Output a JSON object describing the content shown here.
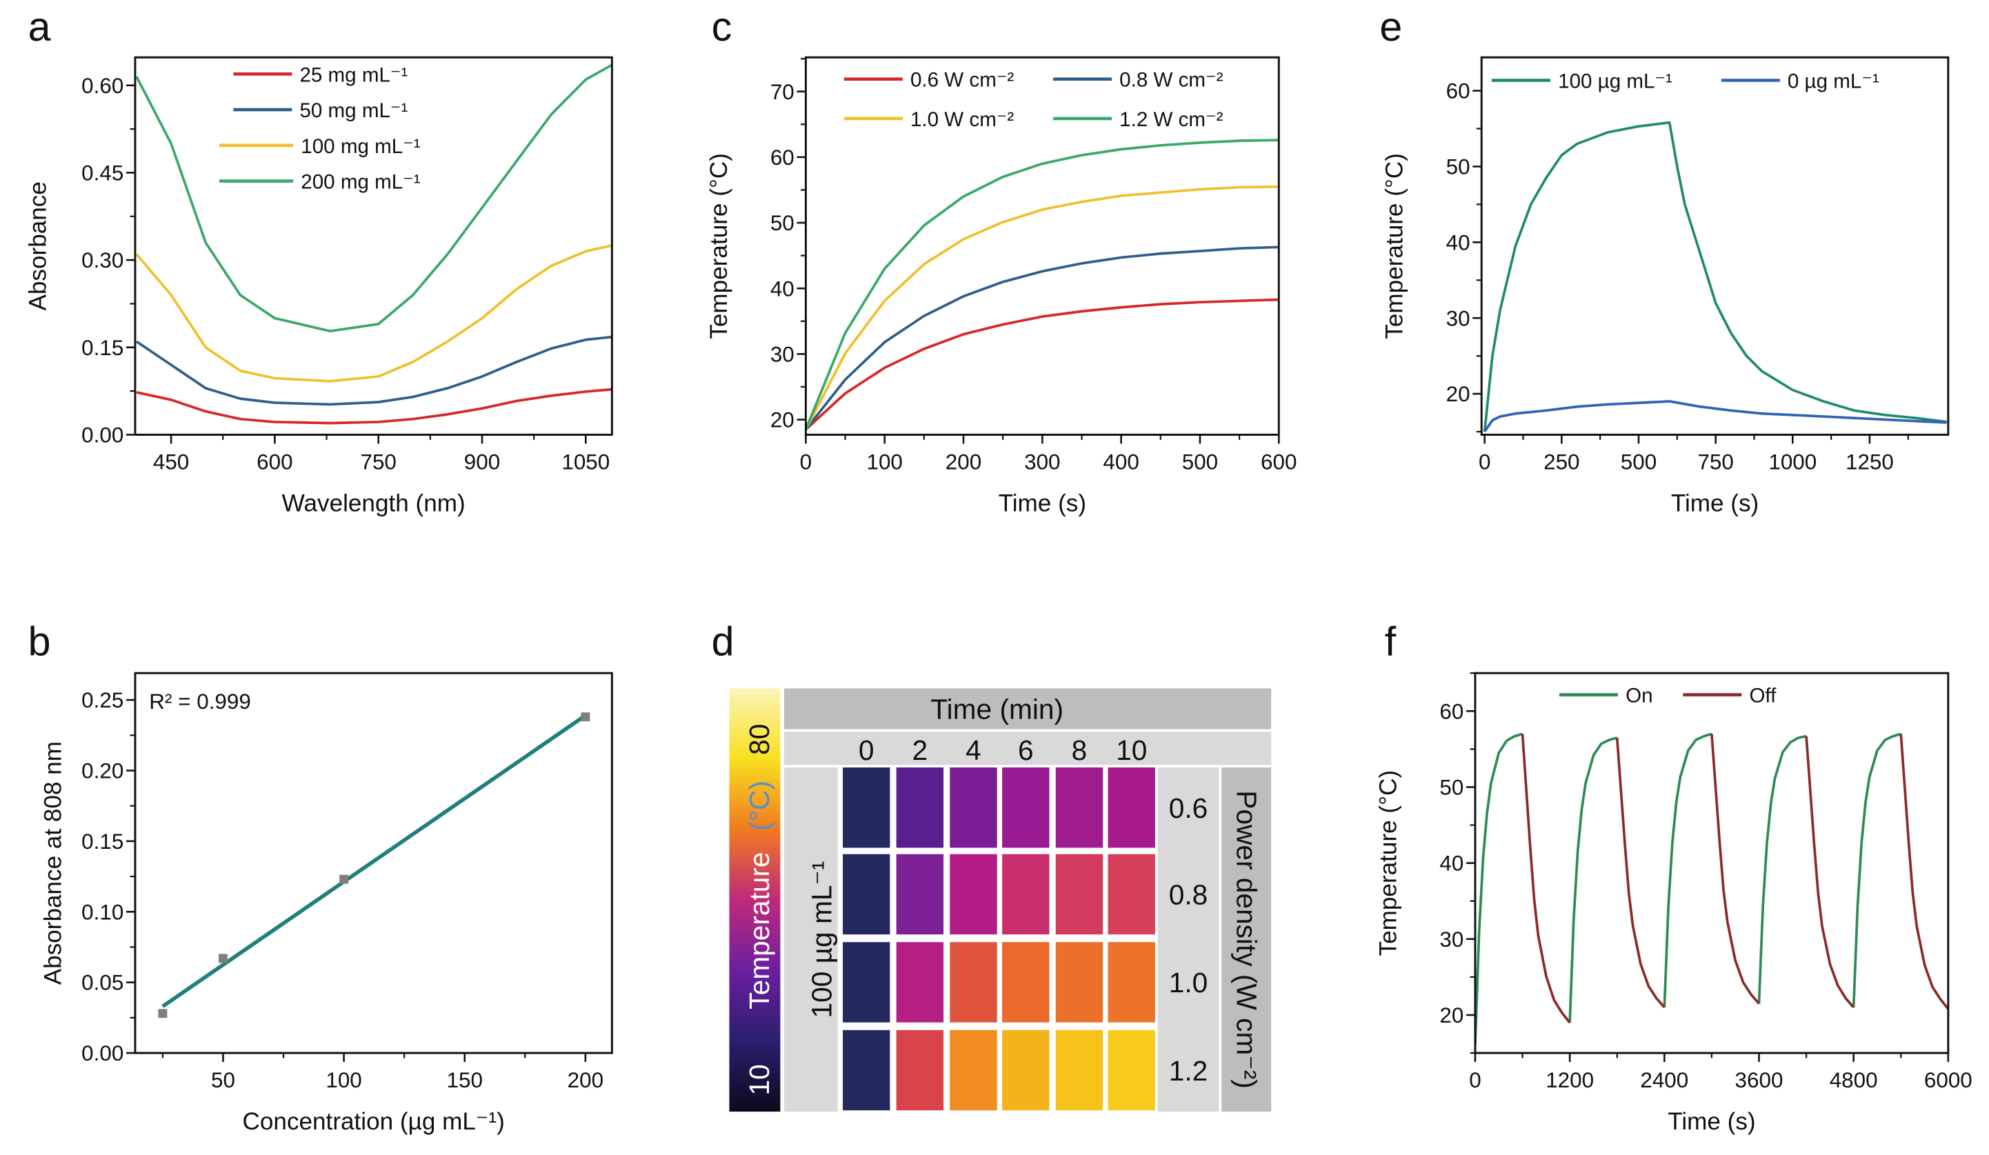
{
  "panels": [
    "a",
    "b",
    "c",
    "d",
    "e",
    "f"
  ],
  "chart_data": [
    {
      "panel": "a",
      "type": "line",
      "xlabel": "Wavelength (nm)",
      "ylabel": "Absorbance",
      "xlim": [
        398,
        1088
      ],
      "ylim": [
        0,
        0.648
      ],
      "xticks": [
        "450",
        "600",
        "750",
        "900",
        "1050"
      ],
      "yticks": [
        "0.00",
        "0.15",
        "0.30",
        "0.45",
        "0.60"
      ],
      "legend": "top-center",
      "series": [
        {
          "name": "25 mg mL⁻¹",
          "color": "#d62728",
          "x": [
            400,
            450,
            500,
            550,
            600,
            680,
            750,
            800,
            850,
            900,
            950,
            1000,
            1050,
            1088
          ],
          "y": [
            0.073,
            0.06,
            0.04,
            0.027,
            0.022,
            0.02,
            0.022,
            0.027,
            0.035,
            0.045,
            0.058,
            0.067,
            0.074,
            0.078
          ]
        },
        {
          "name": "50 mg mL⁻¹",
          "color": "#2f5d8c",
          "x": [
            400,
            450,
            500,
            550,
            600,
            680,
            750,
            800,
            850,
            900,
            950,
            1000,
            1050,
            1088
          ],
          "y": [
            0.16,
            0.12,
            0.08,
            0.062,
            0.055,
            0.052,
            0.056,
            0.065,
            0.08,
            0.1,
            0.125,
            0.148,
            0.163,
            0.168
          ]
        },
        {
          "name": "100 mg mL⁻¹",
          "color": "#f2bf2a",
          "x": [
            400,
            450,
            500,
            550,
            600,
            680,
            750,
            800,
            850,
            900,
            950,
            1000,
            1050,
            1088
          ],
          "y": [
            0.31,
            0.24,
            0.15,
            0.11,
            0.097,
            0.092,
            0.1,
            0.125,
            0.16,
            0.2,
            0.25,
            0.29,
            0.315,
            0.325
          ]
        },
        {
          "name": "200 mg mL⁻¹",
          "color": "#3aa86a",
          "x": [
            400,
            450,
            500,
            550,
            600,
            680,
            750,
            800,
            850,
            900,
            950,
            1000,
            1050,
            1088
          ],
          "y": [
            0.615,
            0.5,
            0.33,
            0.24,
            0.2,
            0.178,
            0.19,
            0.24,
            0.31,
            0.39,
            0.47,
            0.55,
            0.61,
            0.635
          ]
        }
      ]
    },
    {
      "panel": "b",
      "type": "scatter",
      "xlabel": "Concentration (µg mL⁻¹)",
      "ylabel": "Absorbance at 808 nm",
      "xlim": [
        13.6,
        211
      ],
      "ylim": [
        0,
        0.269
      ],
      "xticks": [
        "50",
        "100",
        "150",
        "200"
      ],
      "yticks": [
        "0.00",
        "0.05",
        "0.10",
        "0.15",
        "0.20",
        "0.25"
      ],
      "annotation": "R² = 0.999",
      "points": {
        "color": "#7f7f7f",
        "x": [
          25,
          50,
          100,
          200
        ],
        "y": [
          0.028,
          0.067,
          0.123,
          0.238
        ]
      },
      "fit": {
        "color": "#1f7f7a",
        "x": [
          25,
          200
        ],
        "y": [
          0.033,
          0.239
        ]
      }
    },
    {
      "panel": "c",
      "type": "line",
      "xlabel": "Time (s)",
      "ylabel": "Temperature (°C)",
      "xlim": [
        0,
        600
      ],
      "ylim": [
        17.7,
        75.2
      ],
      "xticks": [
        "0",
        "100",
        "200",
        "300",
        "400",
        "500",
        "600"
      ],
      "yticks": [
        "20",
        "30",
        "40",
        "50",
        "60",
        "70"
      ],
      "legend": "top",
      "series": [
        {
          "name": "0.6 W cm⁻²",
          "color": "#d62728",
          "x": [
            0,
            50,
            100,
            150,
            200,
            250,
            300,
            350,
            400,
            450,
            500,
            550,
            600
          ],
          "y": [
            18.5,
            24.0,
            27.9,
            30.8,
            33.0,
            34.5,
            35.7,
            36.5,
            37.1,
            37.6,
            37.9,
            38.1,
            38.3
          ]
        },
        {
          "name": "0.8 W cm⁻²",
          "color": "#2f5d8c",
          "x": [
            0,
            50,
            100,
            150,
            200,
            250,
            300,
            350,
            400,
            450,
            500,
            550,
            600
          ],
          "y": [
            18.5,
            26.1,
            31.8,
            35.8,
            38.8,
            41.0,
            42.6,
            43.8,
            44.7,
            45.3,
            45.7,
            46.1,
            46.3
          ]
        },
        {
          "name": "1.0 W cm⁻²",
          "color": "#f2bf2a",
          "x": [
            0,
            50,
            100,
            150,
            200,
            250,
            300,
            350,
            400,
            450,
            500,
            550,
            600
          ],
          "y": [
            18.5,
            30.1,
            38.1,
            43.7,
            47.5,
            50.1,
            52.0,
            53.2,
            54.1,
            54.6,
            55.1,
            55.4,
            55.5
          ]
        },
        {
          "name": "1.2 W cm⁻²",
          "color": "#3aa86a",
          "x": [
            0,
            50,
            100,
            150,
            200,
            250,
            300,
            350,
            400,
            450,
            500,
            550,
            600
          ],
          "y": [
            18.5,
            33.2,
            43.0,
            49.6,
            54.0,
            57.0,
            59.0,
            60.3,
            61.2,
            61.8,
            62.2,
            62.5,
            62.6
          ]
        }
      ]
    },
    {
      "panel": "d",
      "type": "heatmap",
      "colorbar": {
        "min_label": "10",
        "max_label": "80",
        "title": "Temperature",
        "unit": "(°C)",
        "colors": [
          "#0b0a1c",
          "#2a1f6e",
          "#6a1fa0",
          "#c02a7a",
          "#f07a20",
          "#f8e020",
          "#fbf4b8"
        ]
      },
      "col_header": "Time (min)",
      "cols": [
        "0",
        "2",
        "4",
        "6",
        "8",
        "10"
      ],
      "row_header": "100 µg mL⁻¹",
      "rows": [
        "0.6",
        "0.8",
        "1.0",
        "1.2"
      ],
      "right_header": "Power density (W cm⁻²)",
      "cell_colors": [
        [
          "#252a5e",
          "#5a1e8e",
          "#7a1c96",
          "#981b94",
          "#a01a90",
          "#a81a8c"
        ],
        [
          "#252a5e",
          "#7f2196",
          "#b31c84",
          "#c82d6e",
          "#d23a5e",
          "#d6405a"
        ],
        [
          "#252a5e",
          "#b51e84",
          "#e0543e",
          "#ea6a2c",
          "#ec702a",
          "#ee722a"
        ],
        [
          "#252a5e",
          "#d9434a",
          "#f08c20",
          "#f5b21a",
          "#f7c21a",
          "#f8cb1c"
        ]
      ]
    },
    {
      "panel": "e",
      "type": "line",
      "xlabel": "Time (s)",
      "ylabel": "Temperature (°C)",
      "xlim": [
        -10,
        1505
      ],
      "ylim": [
        14.6,
        64.4
      ],
      "xticks": [
        "0",
        "250",
        "500",
        "750",
        "1000",
        "1250"
      ],
      "yticks": [
        "20",
        "30",
        "40",
        "50",
        "60"
      ],
      "legend": "top",
      "series": [
        {
          "name": "100 µg mL⁻¹",
          "color": "#1f8a70",
          "x": [
            0,
            25,
            50,
            100,
            150,
            200,
            250,
            300,
            400,
            500,
            600,
            625,
            650,
            700,
            750,
            800,
            850,
            900,
            1000,
            1100,
            1200,
            1300,
            1400,
            1500
          ],
          "y": [
            15,
            25,
            31,
            39.5,
            45,
            48.5,
            51.5,
            53,
            54.5,
            55.3,
            55.8,
            50,
            45,
            38.5,
            32,
            28,
            25,
            23,
            20.5,
            19,
            17.8,
            17.2,
            16.8,
            16.3
          ]
        },
        {
          "name": "0 µg mL⁻¹",
          "color": "#2e63b8",
          "x": [
            0,
            25,
            50,
            100,
            200,
            300,
            400,
            500,
            600,
            700,
            800,
            900,
            1000,
            1200,
            1400,
            1500
          ],
          "y": [
            15,
            16.5,
            17,
            17.4,
            17.8,
            18.3,
            18.6,
            18.8,
            19.0,
            18.3,
            17.8,
            17.4,
            17.2,
            16.8,
            16.4,
            16.2
          ]
        }
      ]
    },
    {
      "panel": "f",
      "type": "line",
      "xlabel": "Time (s)",
      "ylabel": "Temperature (°C)",
      "xlim": [
        0,
        6000
      ],
      "ylim": [
        15,
        65
      ],
      "xticks": [
        "0",
        "1200",
        "2400",
        "3600",
        "4800",
        "6000"
      ],
      "yticks": [
        "20",
        "30",
        "40",
        "50",
        "60"
      ],
      "legend": "top-center",
      "series": [
        {
          "name": "On",
          "color": "#2e8b57",
          "segments": [
            {
              "x": [
                0,
                50,
                100,
                150,
                200,
                300,
                400,
                500,
                600
              ],
              "y": [
                16,
                31.0,
                40.6,
                46.6,
                50.5,
                54.5,
                56.1,
                56.7,
                57
              ]
            },
            {
              "x": [
                1200,
                1250,
                1300,
                1350,
                1400,
                1500,
                1600,
                1700,
                1800
              ],
              "y": [
                19,
                32.7,
                41.5,
                47.0,
                50.5,
                54.2,
                55.7,
                56.2,
                56.5
              ]
            },
            {
              "x": [
                2400,
                2450,
                2500,
                2550,
                2600,
                2700,
                2800,
                2900,
                3000
              ],
              "y": [
                21,
                34.2,
                42.6,
                47.9,
                51.3,
                54.8,
                56.2,
                56.7,
                57
              ]
            },
            {
              "x": [
                3600,
                3650,
                3700,
                3750,
                3800,
                3900,
                4000,
                4100,
                4200
              ],
              "y": [
                21.5,
                34.4,
                42.6,
                47.8,
                51.1,
                54.6,
                55.9,
                56.5,
                56.7
              ]
            },
            {
              "x": [
                4800,
                4850,
                4900,
                4950,
                5000,
                5100,
                5200,
                5300,
                5400
              ],
              "y": [
                21,
                34.2,
                42.6,
                47.9,
                51.3,
                54.8,
                56.2,
                56.7,
                57
              ]
            }
          ]
        },
        {
          "name": "Off",
          "color": "#8b2a2a",
          "segments": [
            {
              "x": [
                600,
                650,
                700,
                750,
                800,
                900,
                1000,
                1100,
                1200
              ],
              "y": [
                57,
                49.4,
                41.8,
                35.0,
                30.4,
                25.1,
                22.0,
                20.3,
                19
              ]
            },
            {
              "x": [
                1800,
                1850,
                1900,
                1950,
                2000,
                2100,
                2200,
                2300,
                2400
              ],
              "y": [
                56.5,
                49.4,
                42.3,
                35.9,
                31.7,
                26.7,
                23.8,
                22.2,
                21
              ]
            },
            {
              "x": [
                3000,
                3050,
                3100,
                3150,
                3200,
                3300,
                3400,
                3500,
                3600
              ],
              "y": [
                57,
                49.9,
                42.8,
                36.4,
                32.2,
                27.2,
                24.3,
                22.7,
                21.5
              ]
            },
            {
              "x": [
                4200,
                4250,
                4300,
                4350,
                4400,
                4500,
                4600,
                4700,
                4800
              ],
              "y": [
                56.7,
                49.6,
                42.4,
                36.0,
                31.7,
                26.7,
                23.9,
                22.2,
                21
              ]
            },
            {
              "x": [
                5400,
                5450,
                5500,
                5550,
                5600,
                5700,
                5800,
                5900,
                6000
              ],
              "y": [
                57,
                49.8,
                42.5,
                36.0,
                31.7,
                26.6,
                23.7,
                22.1,
                20.8
              ]
            }
          ]
        }
      ]
    }
  ]
}
